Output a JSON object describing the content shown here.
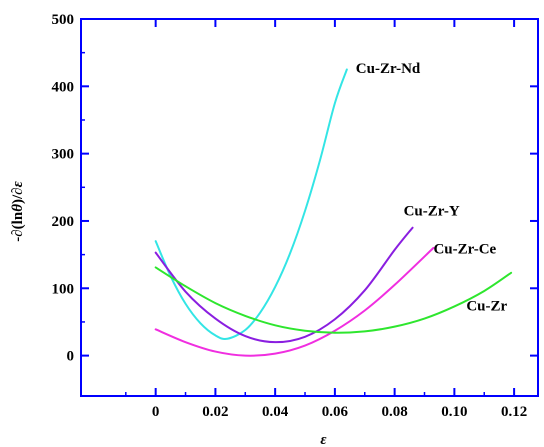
{
  "chart_data": {
    "type": "line",
    "xlabel": "ε",
    "ylabel": {
      "prefix": "-",
      "d1": "∂",
      "open": "(ln",
      "theta": "θ",
      "close": ")/",
      "d2": "∂",
      "eps": "ε"
    },
    "xlim": [
      -0.025,
      0.128
    ],
    "ylim": [
      -60,
      500
    ],
    "xticks": [
      0,
      0.02,
      0.04,
      0.06,
      0.08,
      0.1,
      0.12
    ],
    "xtick_labels": [
      "0",
      "0.02",
      "0.04",
      "0.06",
      "0.08",
      "0.10",
      "0.12"
    ],
    "yticks": [
      0,
      100,
      200,
      300,
      400,
      500
    ],
    "ytick_labels": [
      "0",
      "100",
      "200",
      "300",
      "400",
      "500"
    ],
    "axis_color": "#0000ff",
    "grid": false,
    "series": [
      {
        "name": "Cu-Zr-Nd",
        "color": "#33e5e5",
        "x": [
          0,
          0.005,
          0.01,
          0.015,
          0.02,
          0.024,
          0.03,
          0.035,
          0.04,
          0.045,
          0.05,
          0.055,
          0.06,
          0.064
        ],
        "y": [
          170,
          118,
          77,
          48,
          30,
          25,
          38,
          64,
          102,
          152,
          215,
          290,
          375,
          425
        ]
      },
      {
        "name": "Cu-Zr-Y",
        "color": "#8a1ee0",
        "x": [
          0,
          0.01,
          0.02,
          0.03,
          0.04,
          0.05,
          0.06,
          0.07,
          0.08,
          0.086
        ],
        "y": [
          153,
          95,
          55,
          29,
          20,
          28,
          54,
          97,
          157,
          190
        ]
      },
      {
        "name": "Cu-Zr-Ce",
        "color": "#f02ee0",
        "x": [
          0,
          0.01,
          0.02,
          0.03,
          0.04,
          0.05,
          0.06,
          0.07,
          0.08,
          0.093
        ],
        "y": [
          39,
          20,
          6,
          0,
          3,
          15,
          37,
          67,
          105,
          160
        ]
      },
      {
        "name": "Cu-Zr",
        "color": "#2ee62e",
        "x": [
          0,
          0.01,
          0.02,
          0.03,
          0.04,
          0.05,
          0.06,
          0.07,
          0.08,
          0.09,
          0.1,
          0.11,
          0.119
        ],
        "y": [
          131,
          103,
          78,
          59,
          45,
          37,
          34,
          36,
          43,
          55,
          73,
          96,
          123
        ]
      }
    ],
    "annotations": [
      {
        "text": "Cu-Zr-Nd",
        "x": 0.067,
        "y": 420
      },
      {
        "text": "Cu-Zr-Y",
        "x": 0.083,
        "y": 208
      },
      {
        "text": "Cu-Zr-Ce",
        "x": 0.093,
        "y": 152
      },
      {
        "text": "Cu-Zr",
        "x": 0.104,
        "y": 67
      }
    ]
  }
}
